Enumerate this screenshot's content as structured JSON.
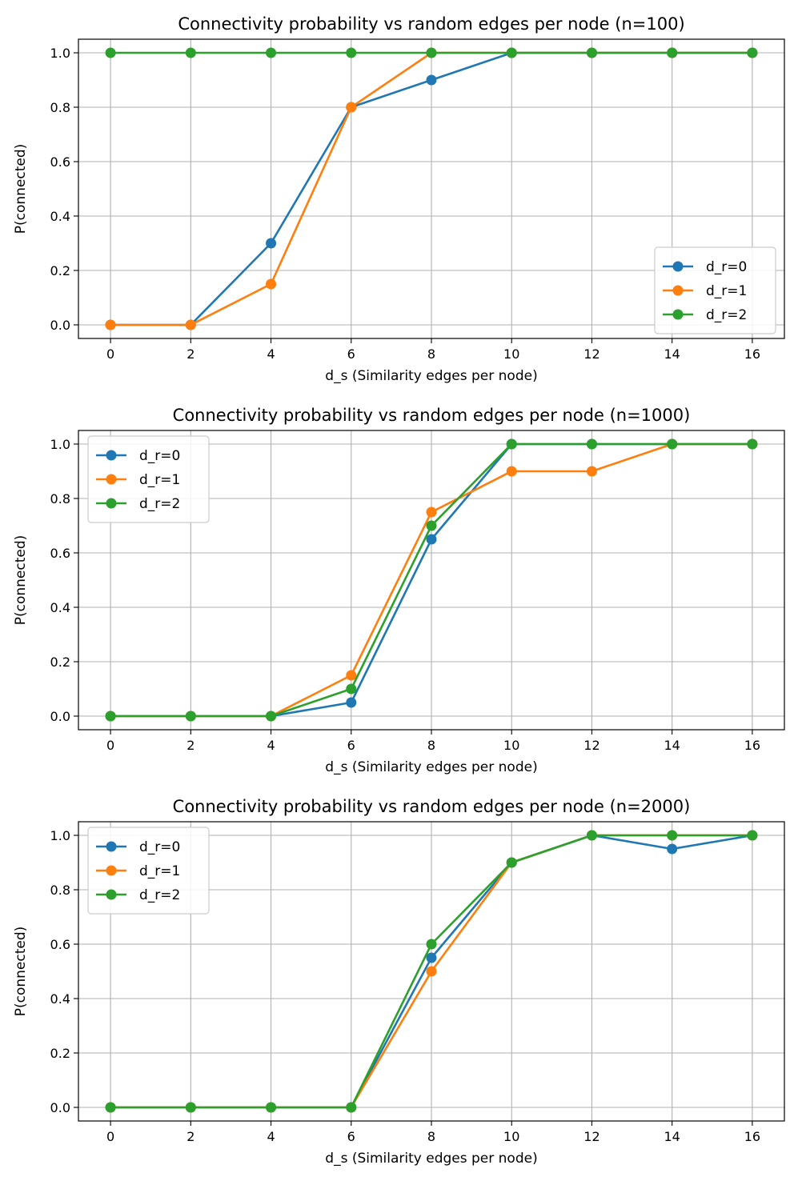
{
  "chart_data": [
    {
      "type": "line",
      "title": "Connectivity probability vs random edges per node (n=100)",
      "xlabel": "d_s (Similarity edges per node)",
      "ylabel": "P(connected)",
      "x": [
        0,
        2,
        4,
        6,
        8,
        10,
        12,
        14,
        16
      ],
      "xlim": [
        -0.8,
        16.8
      ],
      "ylim": [
        -0.05,
        1.05
      ],
      "xticks": [
        0,
        2,
        4,
        6,
        8,
        10,
        12,
        14,
        16
      ],
      "yticks": [
        0.0,
        0.2,
        0.4,
        0.6,
        0.8,
        1.0
      ],
      "xtick_labels": [
        "0",
        "2",
        "4",
        "6",
        "8",
        "10",
        "12",
        "14",
        "16"
      ],
      "ytick_labels": [
        "0.0",
        "0.2",
        "0.4",
        "0.6",
        "0.8",
        "1.0"
      ],
      "grid": true,
      "legend_position": "lower-right",
      "series": [
        {
          "name": "d_r=0",
          "color": "#1f77b4",
          "values": [
            0.0,
            0.0,
            0.3,
            0.8,
            0.9,
            1.0,
            1.0,
            1.0,
            1.0
          ]
        },
        {
          "name": "d_r=1",
          "color": "#ff7f0e",
          "values": [
            0.0,
            0.0,
            0.15,
            0.8,
            1.0,
            1.0,
            1.0,
            1.0,
            1.0
          ]
        },
        {
          "name": "d_r=2",
          "color": "#2ca02c",
          "values": [
            1.0,
            1.0,
            1.0,
            1.0,
            1.0,
            1.0,
            1.0,
            1.0,
            1.0
          ]
        }
      ]
    },
    {
      "type": "line",
      "title": "Connectivity probability vs random edges per node (n=1000)",
      "xlabel": "d_s (Similarity edges per node)",
      "ylabel": "P(connected)",
      "x": [
        0,
        2,
        4,
        6,
        8,
        10,
        12,
        14,
        16
      ],
      "xlim": [
        -0.8,
        16.8
      ],
      "ylim": [
        -0.05,
        1.05
      ],
      "xticks": [
        0,
        2,
        4,
        6,
        8,
        10,
        12,
        14,
        16
      ],
      "yticks": [
        0.0,
        0.2,
        0.4,
        0.6,
        0.8,
        1.0
      ],
      "xtick_labels": [
        "0",
        "2",
        "4",
        "6",
        "8",
        "10",
        "12",
        "14",
        "16"
      ],
      "ytick_labels": [
        "0.0",
        "0.2",
        "0.4",
        "0.6",
        "0.8",
        "1.0"
      ],
      "grid": true,
      "legend_position": "upper-left",
      "series": [
        {
          "name": "d_r=0",
          "color": "#1f77b4",
          "values": [
            0.0,
            0.0,
            0.0,
            0.05,
            0.65,
            1.0,
            1.0,
            1.0,
            1.0
          ]
        },
        {
          "name": "d_r=1",
          "color": "#ff7f0e",
          "values": [
            0.0,
            0.0,
            0.0,
            0.15,
            0.75,
            0.9,
            0.9,
            1.0,
            1.0
          ]
        },
        {
          "name": "d_r=2",
          "color": "#2ca02c",
          "values": [
            0.0,
            0.0,
            0.0,
            0.1,
            0.7,
            1.0,
            1.0,
            1.0,
            1.0
          ]
        }
      ]
    },
    {
      "type": "line",
      "title": "Connectivity probability vs random edges per node (n=2000)",
      "xlabel": "d_s (Similarity edges per node)",
      "ylabel": "P(connected)",
      "x": [
        0,
        2,
        4,
        6,
        8,
        10,
        12,
        14,
        16
      ],
      "xlim": [
        -0.8,
        16.8
      ],
      "ylim": [
        -0.05,
        1.05
      ],
      "xticks": [
        0,
        2,
        4,
        6,
        8,
        10,
        12,
        14,
        16
      ],
      "yticks": [
        0.0,
        0.2,
        0.4,
        0.6,
        0.8,
        1.0
      ],
      "xtick_labels": [
        "0",
        "2",
        "4",
        "6",
        "8",
        "10",
        "12",
        "14",
        "16"
      ],
      "ytick_labels": [
        "0.0",
        "0.2",
        "0.4",
        "0.6",
        "0.8",
        "1.0"
      ],
      "grid": true,
      "legend_position": "upper-left",
      "series": [
        {
          "name": "d_r=0",
          "color": "#1f77b4",
          "values": [
            0.0,
            0.0,
            0.0,
            0.0,
            0.55,
            0.9,
            1.0,
            0.95,
            1.0
          ]
        },
        {
          "name": "d_r=1",
          "color": "#ff7f0e",
          "values": [
            0.0,
            0.0,
            0.0,
            0.0,
            0.5,
            0.9,
            1.0,
            1.0,
            1.0
          ]
        },
        {
          "name": "d_r=2",
          "color": "#2ca02c",
          "values": [
            0.0,
            0.0,
            0.0,
            0.0,
            0.6,
            0.9,
            1.0,
            1.0,
            1.0
          ]
        }
      ]
    }
  ],
  "colors": {
    "grid": "#b0b0b0",
    "axes": "#000000",
    "legend_border": "#cccccc"
  }
}
